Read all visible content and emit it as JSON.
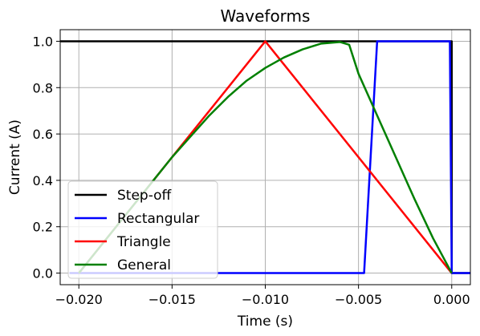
{
  "chart_data": {
    "type": "line",
    "title": "Waveforms",
    "xlabel": "Time (s)",
    "ylabel": "Current (A)",
    "xlim": [
      -0.021,
      0.001
    ],
    "ylim": [
      -0.05,
      1.05
    ],
    "grid": true,
    "legend_position": "lower-left",
    "x_ticks": [
      -0.02,
      -0.015,
      -0.01,
      -0.005,
      0.0
    ],
    "x_tick_labels": [
      "−0.020",
      "−0.015",
      "−0.010",
      "−0.005",
      "0.000"
    ],
    "y_ticks": [
      0.0,
      0.2,
      0.4,
      0.6,
      0.8,
      1.0
    ],
    "y_tick_labels": [
      "0.0",
      "0.2",
      "0.4",
      "0.6",
      "0.8",
      "1.0"
    ],
    "series": [
      {
        "name": "Step-off",
        "color": "#000000",
        "x": [
          -0.021,
          0.0,
          0.0,
          0.001
        ],
        "y": [
          1.0,
          1.0,
          0.0,
          0.0
        ]
      },
      {
        "name": "Rectangular",
        "color": "#0000ff",
        "x": [
          -0.0205,
          -0.0047,
          -0.004,
          -0.0001,
          0.0,
          0.001
        ],
        "y": [
          0.0,
          0.0,
          1.0,
          1.0,
          0.0,
          0.0
        ]
      },
      {
        "name": "Triangle",
        "color": "#ff0000",
        "x": [
          -0.02,
          -0.01,
          0.0
        ],
        "y": [
          0.0,
          1.0,
          0.0
        ]
      },
      {
        "name": "General",
        "color": "#008000",
        "x": [
          -0.02,
          -0.019,
          -0.018,
          -0.017,
          -0.016,
          -0.015,
          -0.014,
          -0.013,
          -0.012,
          -0.011,
          -0.01,
          -0.009,
          -0.008,
          -0.007,
          -0.006,
          -0.0055,
          -0.005,
          -0.004,
          -0.003,
          -0.002,
          -0.001,
          0.0
        ],
        "y": [
          0.0,
          0.1,
          0.2,
          0.3,
          0.4,
          0.5,
          0.59,
          0.68,
          0.76,
          0.83,
          0.885,
          0.93,
          0.965,
          0.99,
          0.997,
          0.985,
          0.86,
          0.68,
          0.5,
          0.32,
          0.15,
          0.0
        ]
      }
    ]
  }
}
